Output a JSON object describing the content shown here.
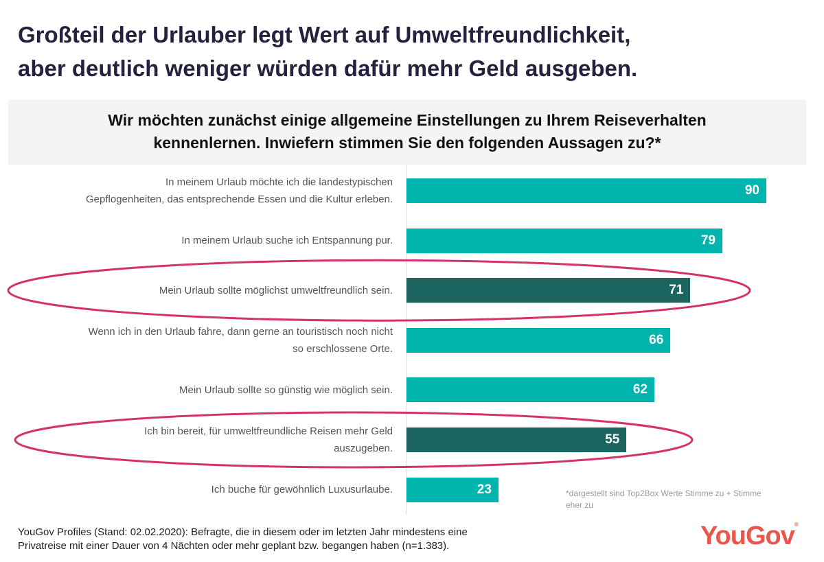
{
  "title_lines": [
    "Großteil der Urlauber legt Wert auf Umweltfreundlichkeit,",
    "aber deutlich weniger würden dafür mehr Geld ausgeben."
  ],
  "question_lines": [
    "Wir möchten zunächst einige allgemeine Einstellungen zu Ihrem Reiseverhalten",
    "kennenlernen. Inwiefern stimmen Sie den folgenden Aussagen zu?*"
  ],
  "chart_data": {
    "type": "bar",
    "orientation": "horizontal",
    "categories": [
      [
        "In meinem Urlaub möchte ich die landestypischen",
        "Gepflogenheiten, das entsprechende Essen und die Kultur erleben."
      ],
      [
        "In meinem Urlaub suche ich Entspannung pur."
      ],
      [
        "Mein Urlaub sollte möglichst umweltfreundlich sein."
      ],
      [
        "Wenn ich in den Urlaub fahre, dann gerne an touristisch noch nicht",
        "so erschlossene Orte."
      ],
      [
        "Mein Urlaub sollte so günstig wie möglich sein."
      ],
      [
        "Ich bin bereit, für umweltfreundliche Reisen mehr Geld",
        "auszugeben."
      ],
      [
        "Ich buche für gewöhnlich Luxusurlaube."
      ]
    ],
    "values": [
      90,
      79,
      71,
      66,
      62,
      55,
      23
    ],
    "highlighted": [
      false,
      false,
      true,
      false,
      false,
      true,
      false
    ],
    "xlim": [
      0,
      100
    ],
    "grid": false
  },
  "colors": {
    "bar": "#00b5ad",
    "highlight": "#1b6460",
    "ellipse": "#d4326c",
    "title": "#23233f",
    "logo": "#e8574a"
  },
  "note": "*dargestellt sind Top2Box Werte Stimme zu + Stimme eher zu",
  "source_lines": [
    "YouGov Profiles (Stand: 02.02.2020): Befragte, die in diesem oder im letzten Jahr mindestens eine",
    "Privatreise mit einer Dauer von 4 Nächten oder mehr geplant bzw. begangen haben (n=1.383)."
  ],
  "logo": "YouGov"
}
